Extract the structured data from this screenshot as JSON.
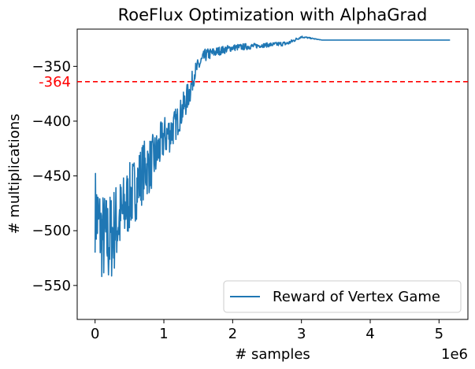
{
  "chart_data": {
    "type": "line",
    "title": "RoeFlux Optimization with AlphaGrad",
    "xlabel": "# samples",
    "ylabel": "# multiplications",
    "x_scale_label": "1e6",
    "xlim": [
      -0.26,
      5.42
    ],
    "ylim": [
      -581,
      -316
    ],
    "x_ticks": [
      0,
      1,
      2,
      3,
      4,
      5
    ],
    "x_tick_labels": [
      "0",
      "1",
      "2",
      "3",
      "4",
      "5"
    ],
    "y_ticks": [
      -550,
      -500,
      -450,
      -400,
      -350
    ],
    "y_tick_labels": [
      "−550",
      "−500",
      "−450",
      "−400",
      "−350"
    ],
    "grid": false,
    "legend_position": "lower-right",
    "series": [
      {
        "name": "Reward of Vertex Game",
        "color": "#1f77b4",
        "x": [
          0.0,
          0.1,
          0.2,
          0.3,
          0.4,
          0.5,
          0.6,
          0.7,
          0.8,
          0.9,
          1.0,
          1.1,
          1.2,
          1.3,
          1.38,
          1.45,
          1.6,
          1.8,
          2.0,
          2.2,
          2.4,
          2.6,
          2.8,
          3.0,
          3.3,
          4.0,
          5.16
        ],
        "y": [
          -480,
          -505,
          -510,
          -495,
          -485,
          -470,
          -460,
          -445,
          -440,
          -430,
          -415,
          -410,
          -400,
          -385,
          -372,
          -355,
          -340,
          -336,
          -333,
          -332,
          -331,
          -330,
          -329,
          -323,
          -326,
          -326,
          -326
        ],
        "noise": [
          40,
          42,
          44,
          40,
          36,
          32,
          30,
          28,
          26,
          22,
          20,
          18,
          14,
          14,
          12,
          8,
          6,
          4,
          3,
          3,
          2,
          2,
          2,
          1,
          0,
          0,
          0
        ]
      }
    ],
    "reference_line": {
      "y": -364,
      "label": "-364",
      "color": "#ff0000",
      "style": "dashed"
    }
  }
}
